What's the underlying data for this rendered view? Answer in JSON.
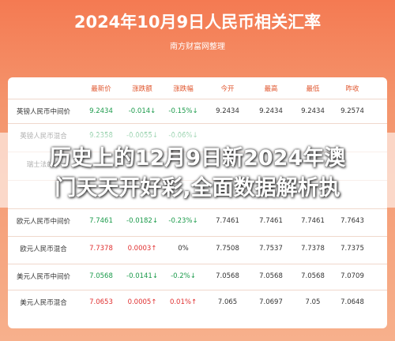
{
  "header": {
    "title": "2024年10月9日人民币相关汇率",
    "subtitle": "南方财富网整理"
  },
  "table": {
    "columns": [
      "最新价",
      "涨跌额",
      "涨跌幅",
      "今开",
      "最高",
      "最低",
      "昨收"
    ],
    "rows": [
      [
        "英镑人民币中间价",
        "9.2434",
        "-0.014↓",
        "-0.15%↓",
        "9.2434",
        "9.2434",
        "9.2434",
        "9.2574"
      ],
      [
        "英镑人民币混合",
        "9.2358",
        "-0.0055↓",
        "-0.06%↓"
      ],
      [
        "瑞士法郎人"
      ],
      [],
      [
        "欧元人民币中间价",
        "7.7461",
        "-0.0182↓",
        "-0.23%↓",
        "7.7461",
        "7.7461",
        "7.7461",
        "7.7643"
      ],
      [
        "欧元人民币混合",
        "7.7378",
        "0.0003↑",
        "0%",
        "7.7508",
        "7.7537",
        "7.7378",
        "7.7375"
      ],
      [
        "美元人民币中间价",
        "7.0568",
        "-0.0141↓",
        "-0.2%↓",
        "7.0568",
        "7.0568",
        "7.0568",
        "7.0709"
      ],
      [
        "美元人民币混合",
        "7.0653",
        "0.0005↑",
        "0.01%↑",
        "7.065",
        "7.0697",
        "7.05",
        "7.0648"
      ]
    ]
  },
  "overlay": {
    "lines": [
      "历史上的12月9日新2024年澳",
      "门天天开好彩,全面数据解析执"
    ]
  }
}
